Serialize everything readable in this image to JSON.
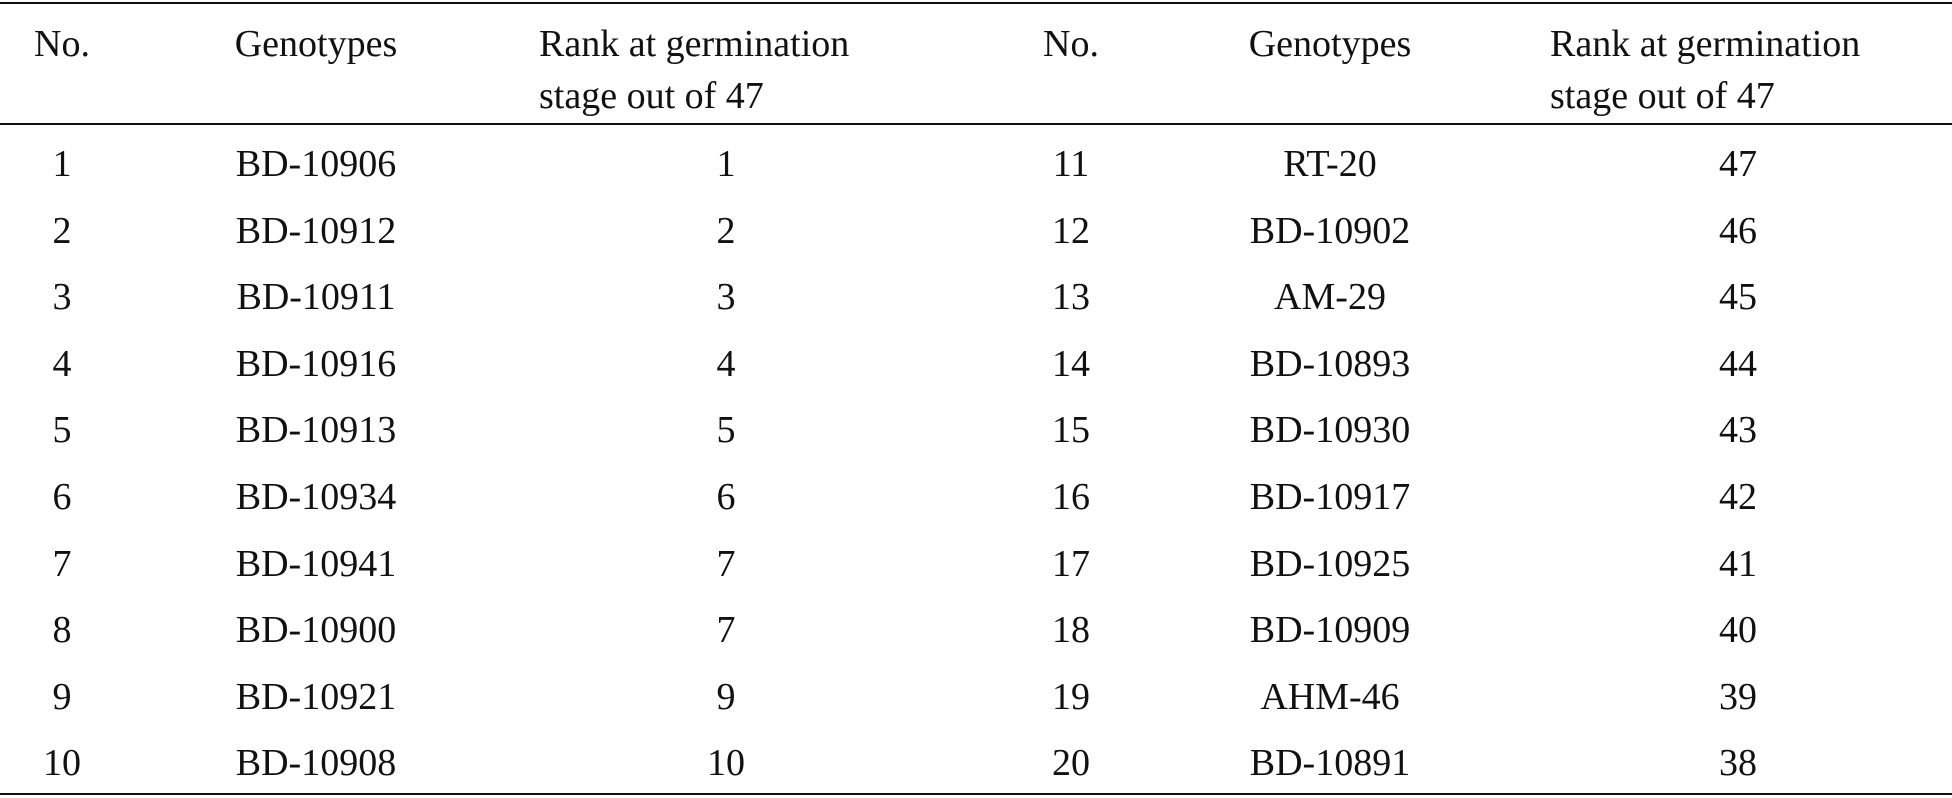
{
  "table": {
    "header": [
      "No.",
      "Genotypes",
      "Rank at germination stage out of 47",
      "No.",
      "Genotypes",
      "Rank at germination stage out of 47"
    ],
    "rows": [
      [
        "1",
        "BD-10906",
        "1",
        "11",
        "RT-20",
        "47"
      ],
      [
        "2",
        "BD-10912",
        "2",
        "12",
        "BD-10902",
        "46"
      ],
      [
        "3",
        "BD-10911",
        "3",
        "13",
        "AM-29",
        "45"
      ],
      [
        "4",
        "BD-10916",
        "4",
        "14",
        "BD-10893",
        "44"
      ],
      [
        "5",
        "BD-10913",
        "5",
        "15",
        "BD-10930",
        "43"
      ],
      [
        "6",
        "BD-10934",
        "6",
        "16",
        "BD-10917",
        "42"
      ],
      [
        "7",
        "BD-10941",
        "7",
        "17",
        "BD-10925",
        "41"
      ],
      [
        "8",
        "BD-10900",
        "7",
        "18",
        "BD-10909",
        "40"
      ],
      [
        "9",
        "BD-10921",
        "9",
        "19",
        "AHM-46",
        "39"
      ],
      [
        "10",
        "BD-10908",
        "10",
        "20",
        "BD-10891",
        "38"
      ]
    ]
  }
}
